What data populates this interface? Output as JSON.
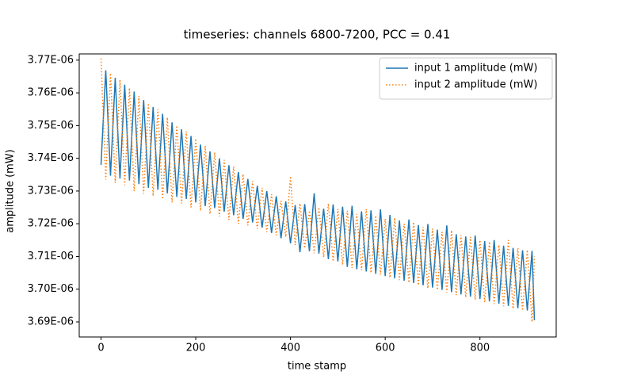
{
  "chart_data": {
    "type": "line",
    "title": "timeseries: channels 6800-7200, PCC = 0.41",
    "xlabel": "time stamp",
    "ylabel": "amplitude (mW)",
    "legend": "upper right",
    "grid": false,
    "xlim": [
      -46,
      961
    ],
    "ylim": [
      3.6854e-06,
      3.7719e-06
    ],
    "xticks": [
      0,
      200,
      400,
      600,
      800
    ],
    "yticks": [
      {
        "value": 3.69e-06,
        "label": "3.69E-06"
      },
      {
        "value": 3.7e-06,
        "label": "3.70E-06"
      },
      {
        "value": 3.71e-06,
        "label": "3.71E-06"
      },
      {
        "value": 3.72e-06,
        "label": "3.72E-06"
      },
      {
        "value": 3.73e-06,
        "label": "3.73E-06"
      },
      {
        "value": 3.74e-06,
        "label": "3.74E-06"
      },
      {
        "value": 3.75e-06,
        "label": "3.75E-06"
      },
      {
        "value": 3.76e-06,
        "label": "3.76E-06"
      },
      {
        "value": 3.77e-06,
        "label": "3.77E-06"
      }
    ],
    "x": [
      0,
      10,
      20,
      30,
      40,
      50,
      60,
      70,
      80,
      90,
      100,
      110,
      120,
      130,
      140,
      150,
      160,
      170,
      180,
      190,
      200,
      210,
      220,
      230,
      240,
      250,
      260,
      270,
      280,
      290,
      300,
      310,
      320,
      330,
      340,
      350,
      360,
      370,
      380,
      390,
      400,
      410,
      420,
      430,
      440,
      450,
      460,
      470,
      480,
      490,
      500,
      510,
      520,
      530,
      540,
      550,
      560,
      570,
      580,
      590,
      600,
      610,
      620,
      630,
      640,
      650,
      660,
      670,
      680,
      690,
      700,
      710,
      720,
      730,
      740,
      750,
      760,
      770,
      780,
      790,
      800,
      810,
      820,
      830,
      840,
      850,
      860,
      870,
      880,
      890,
      900,
      910,
      915
    ],
    "series": [
      {
        "name": "input 1 amplitude (mW)",
        "color": "#1f77b4",
        "style": "solid",
        "values": [
          3.738e-06,
          3.7669e-06,
          3.7347e-06,
          3.7646e-06,
          3.7338e-06,
          3.7625e-06,
          3.7332e-06,
          3.7604e-06,
          3.7321e-06,
          3.7578e-06,
          3.731e-06,
          3.7557e-06,
          3.7304e-06,
          3.7536e-06,
          3.7293e-06,
          3.751e-06,
          3.7282e-06,
          3.7489e-06,
          3.7276e-06,
          3.7468e-06,
          3.7265e-06,
          3.7442e-06,
          3.7254e-06,
          3.7421e-06,
          3.7248e-06,
          3.74e-06,
          3.7237e-06,
          3.7379e-06,
          3.7226e-06,
          3.7358e-06,
          3.7215e-06,
          3.7337e-06,
          3.7204e-06,
          3.7316e-06,
          3.7188e-06,
          3.73e-06,
          3.7172e-06,
          3.7284e-06,
          3.7156e-06,
          3.7268e-06,
          3.714e-06,
          3.7257e-06,
          3.7113e-06,
          3.726e-06,
          3.7116e-06,
          3.7293e-06,
          3.7109e-06,
          3.7246e-06,
          3.7092e-06,
          3.7259e-06,
          3.7085e-06,
          3.7252e-06,
          3.7068e-06,
          3.7255e-06,
          3.7061e-06,
          3.7238e-06,
          3.7054e-06,
          3.7241e-06,
          3.7047e-06,
          3.7244e-06,
          3.704e-06,
          3.7227e-06,
          3.7033e-06,
          3.721e-06,
          3.7026e-06,
          3.7213e-06,
          3.7019e-06,
          3.7196e-06,
          3.7012e-06,
          3.7199e-06,
          3.7005e-06,
          3.7182e-06,
          3.6998e-06,
          3.7195e-06,
          3.6991e-06,
          3.7168e-06,
          3.6984e-06,
          3.7161e-06,
          3.6977e-06,
          3.7164e-06,
          3.697e-06,
          3.7147e-06,
          3.6963e-06,
          3.715e-06,
          3.6956e-06,
          3.7133e-06,
          3.6949e-06,
          3.7126e-06,
          3.6942e-06,
          3.7119e-06,
          3.6935e-06,
          3.7117e-06,
          3.6905e-06
        ]
      },
      {
        "name": "input 2 amplitude (mW)",
        "color": "#ff7f0e",
        "style": "dotted",
        "values": [
          3.7705e-06,
          3.7335e-06,
          3.766e-06,
          3.7325e-06,
          3.764e-06,
          3.7318e-06,
          3.7615e-06,
          3.73e-06,
          3.759e-06,
          3.7292e-06,
          3.7568e-06,
          3.7285e-06,
          3.755e-06,
          3.7275e-06,
          3.7525e-06,
          3.7265e-06,
          3.75e-06,
          3.7262e-06,
          3.7482e-06,
          3.725e-06,
          3.746e-06,
          3.724e-06,
          3.7438e-06,
          3.723e-06,
          3.7418e-06,
          3.7222e-06,
          3.7395e-06,
          3.7212e-06,
          3.7375e-06,
          3.72e-06,
          3.7352e-06,
          3.7195e-06,
          3.733e-06,
          3.7185e-06,
          3.731e-06,
          3.7175e-06,
          3.729e-06,
          3.7165e-06,
          3.727e-06,
          3.716e-06,
          3.7345e-06,
          3.7135e-06,
          3.7262e-06,
          3.7125e-06,
          3.724e-06,
          3.711e-06,
          3.725e-06,
          3.7098e-06,
          3.7262e-06,
          3.7085e-06,
          3.7245e-06,
          3.7075e-06,
          3.724e-06,
          3.7065e-06,
          3.723e-06,
          3.7058e-06,
          3.7245e-06,
          3.705e-06,
          3.7225e-06,
          3.7045e-06,
          3.7215e-06,
          3.7035e-06,
          3.7218e-06,
          3.7028e-06,
          3.72e-06,
          3.702e-06,
          3.7205e-06,
          3.7012e-06,
          3.719e-06,
          3.7003e-06,
          3.7185e-06,
          3.6998e-06,
          3.7175e-06,
          3.699e-06,
          3.718e-06,
          3.6982e-06,
          3.7165e-06,
          3.6975e-06,
          3.716e-06,
          3.6968e-06,
          3.715e-06,
          3.696e-06,
          3.7145e-06,
          3.6955e-06,
          3.7135e-06,
          3.6948e-06,
          3.715e-06,
          3.694e-06,
          3.7125e-06,
          3.6935e-06,
          3.712e-06,
          3.69e-06,
          3.71e-06
        ]
      }
    ]
  }
}
